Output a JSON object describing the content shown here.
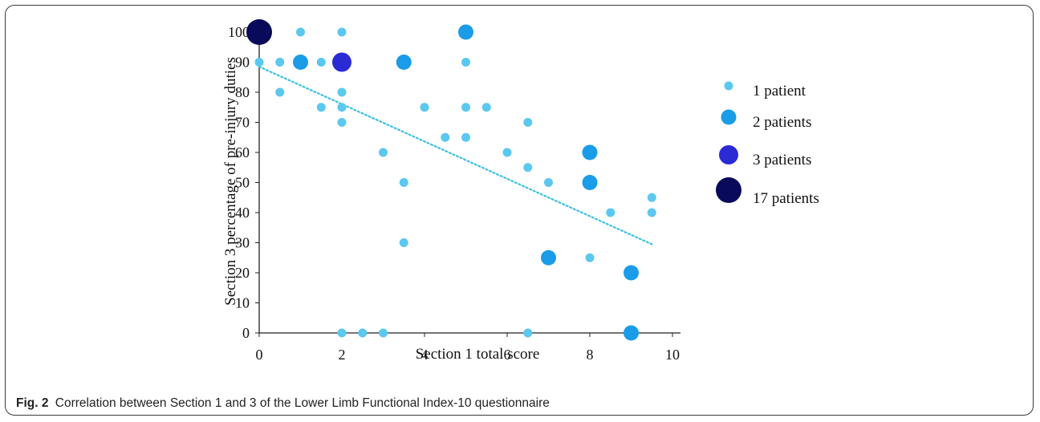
{
  "caption": {
    "fig_label": "Fig. 2",
    "text": "Correlation between Section 1 and 3 of the Lower Limb Functional Index-10 questionnaire"
  },
  "chart_data": {
    "type": "scatter",
    "xlabel": "Section 1 total score",
    "ylabel": "Section 3 percentage of pre-injury duties",
    "xlim": [
      0,
      10
    ],
    "ylim": [
      0,
      100
    ],
    "x_ticks": [
      "0",
      "2",
      "4",
      "6",
      "8",
      "10"
    ],
    "y_ticks": [
      "0",
      "10",
      "20",
      "30",
      "40",
      "50",
      "60",
      "70",
      "80",
      "90",
      "100"
    ],
    "grid": false,
    "legend_position": "right",
    "series": [
      {
        "name": "1 patient",
        "color": "#5bc8ef",
        "points": [
          [
            0,
            90
          ],
          [
            0.5,
            90
          ],
          [
            1,
            100
          ],
          [
            1.5,
            90
          ],
          [
            2,
            100
          ],
          [
            0.5,
            80
          ],
          [
            1.5,
            75
          ],
          [
            2,
            80
          ],
          [
            2,
            75
          ],
          [
            2,
            70
          ],
          [
            3,
            60
          ],
          [
            3.5,
            50
          ],
          [
            3.5,
            30
          ],
          [
            4,
            75
          ],
          [
            4.5,
            65
          ],
          [
            5,
            90
          ],
          [
            5,
            75
          ],
          [
            5,
            65
          ],
          [
            5.5,
            75
          ],
          [
            6,
            60
          ],
          [
            6.5,
            70
          ],
          [
            6.5,
            55
          ],
          [
            7,
            50
          ],
          [
            8,
            25
          ],
          [
            8.5,
            40
          ],
          [
            9.5,
            45
          ],
          [
            9.5,
            40
          ],
          [
            2,
            0
          ],
          [
            2.5,
            0
          ],
          [
            3,
            0
          ],
          [
            6.5,
            0
          ]
        ]
      },
      {
        "name": "2 patients",
        "color": "#1a9ce8",
        "points": [
          [
            1,
            90
          ],
          [
            3.5,
            90
          ],
          [
            5,
            100
          ],
          [
            8,
            60
          ],
          [
            8,
            50
          ],
          [
            7,
            25
          ],
          [
            9,
            20
          ],
          [
            9,
            0
          ]
        ]
      },
      {
        "name": "3 patients",
        "color": "#2b2bd6",
        "points": [
          [
            2,
            90
          ]
        ]
      },
      {
        "name": "17 patients",
        "color": "#0a0a5a",
        "points": [
          [
            0,
            100
          ]
        ]
      }
    ],
    "trendline": {
      "type": "linear",
      "style": "dotted",
      "color": "#3cc0e0",
      "x_range": [
        0,
        9.5
      ],
      "y_at_start": 88.5,
      "y_at_end": 29.5
    }
  }
}
